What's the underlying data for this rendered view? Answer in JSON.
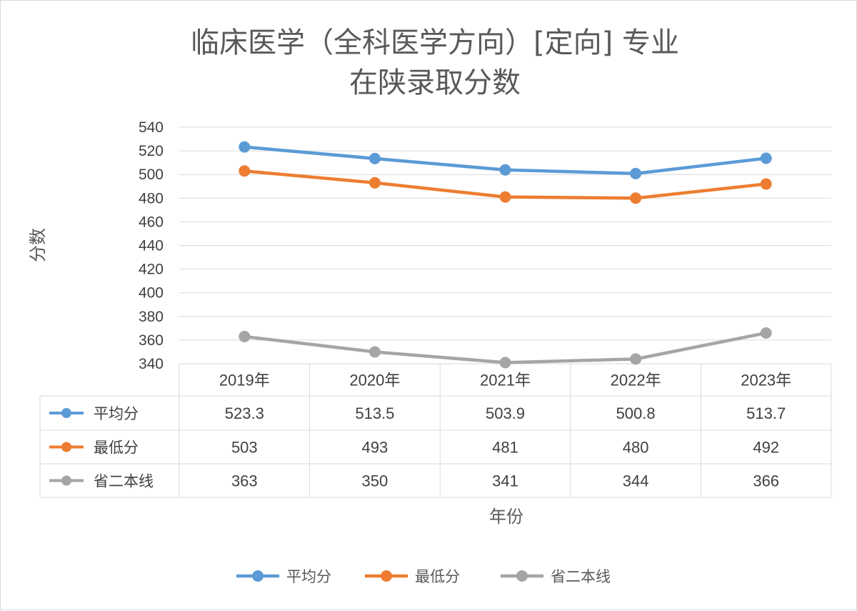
{
  "chart_data": {
    "type": "line",
    "title_line1": "临床医学（全科医学方向）[定向] 专业",
    "title_line2": "在陕录取分数",
    "ylabel": "分数",
    "xlabel": "年份",
    "categories": [
      "2019年",
      "2020年",
      "2021年",
      "2022年",
      "2023年"
    ],
    "ylim": [
      340,
      540
    ],
    "yticks": [
      340,
      360,
      380,
      400,
      420,
      440,
      460,
      480,
      500,
      520,
      540
    ],
    "grid": true,
    "legend_position": "bottom",
    "data_table": true,
    "series": [
      {
        "name": "平均分",
        "color": "#5b9bd5",
        "values": [
          523.3,
          513.5,
          503.9,
          500.8,
          513.7
        ],
        "labels": [
          "523.3",
          "513.5",
          "503.9",
          "500.8",
          "513.7"
        ]
      },
      {
        "name": "最低分",
        "color": "#ed7d31",
        "values": [
          503,
          493,
          481,
          480,
          492
        ],
        "labels": [
          "503",
          "493",
          "481",
          "480",
          "492"
        ]
      },
      {
        "name": "省二本线",
        "color": "#a5a5a5",
        "values": [
          363,
          350,
          341,
          344,
          366
        ],
        "labels": [
          "363",
          "350",
          "341",
          "344",
          "366"
        ]
      }
    ]
  }
}
